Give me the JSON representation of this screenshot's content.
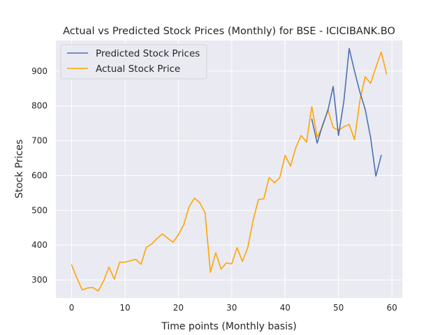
{
  "chart_data": {
    "type": "line",
    "title": "Actual vs Predicted Stock Prices (Monthly) for BSE - ICICIBANK.BO",
    "xlabel": "Time points (Monthly basis)",
    "ylabel": "Stock Prices",
    "xlim": [
      -2.95,
      61.95
    ],
    "ylim": [
      248,
      988
    ],
    "xticks": [
      0,
      10,
      20,
      30,
      40,
      50,
      60
    ],
    "yticks": [
      300,
      400,
      500,
      600,
      700,
      800,
      900
    ],
    "grid": true,
    "legend_position": "top-left",
    "series": [
      {
        "name": "Predicted Stock Prices",
        "color": "#4c72b0",
        "x": [
          45,
          46,
          47,
          48,
          49,
          50,
          51,
          52,
          53,
          54,
          55,
          56,
          57,
          58
        ],
        "values": [
          762,
          693,
          744,
          786,
          856,
          715,
          813,
          965,
          900,
          840,
          790,
          710,
          598,
          658
        ]
      },
      {
        "name": "Actual Stock Price",
        "color": "#ffa500",
        "x": [
          0,
          1,
          2,
          3,
          4,
          5,
          6,
          7,
          8,
          9,
          10,
          11,
          12,
          13,
          14,
          15,
          16,
          17,
          18,
          19,
          20,
          21,
          22,
          23,
          24,
          25,
          26,
          27,
          28,
          29,
          30,
          31,
          32,
          33,
          34,
          35,
          36,
          37,
          38,
          39,
          40,
          41,
          42,
          43,
          44,
          45,
          46,
          47,
          48,
          49,
          50,
          51,
          52,
          53,
          54,
          55,
          56,
          57,
          58,
          59
        ],
        "values": [
          343,
          305,
          271,
          277,
          278,
          268,
          297,
          337,
          302,
          351,
          351,
          355,
          359,
          345,
          394,
          403,
          419,
          432,
          420,
          408,
          430,
          458,
          510,
          535,
          522,
          493,
          322,
          378,
          331,
          349,
          346,
          393,
          353,
          393,
          471,
          531,
          533,
          594,
          579,
          594,
          658,
          627,
          680,
          715,
          696,
          798,
          710,
          740,
          790,
          738,
          730,
          740,
          747,
          703,
          815,
          884,
          865,
          910,
          955,
          892
        ]
      }
    ]
  }
}
